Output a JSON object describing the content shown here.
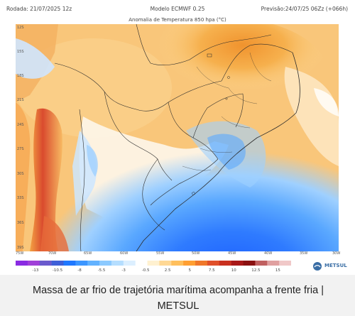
{
  "header": {
    "run": "Rodada: 21/07/2025 12z",
    "model": "Modelo ECMWF 0.25",
    "forecast": "Previsão:24/07/25 06Zz (+066h)",
    "title": "Anomalia de Temperatura 850 hpa (°C)"
  },
  "axes": {
    "lat_labels": [
      "12S",
      "15S",
      "18S",
      "21S",
      "24S",
      "27S",
      "30S",
      "33S",
      "36S",
      "39S"
    ],
    "lon_labels": [
      "75W",
      "70W",
      "65W",
      "60W",
      "55W",
      "50W",
      "45W",
      "40W",
      "35W",
      "30W"
    ]
  },
  "legend": {
    "labels": [
      "-13",
      "-10.5",
      "-8",
      "-5.5",
      "-3",
      "-0.5",
      "2.5",
      "5",
      "7.5",
      "10",
      "12.5",
      "15"
    ],
    "colors": [
      "#8a2be2",
      "#a040d8",
      "#6a5acd",
      "#3f60d8",
      "#1f78ff",
      "#3c96ff",
      "#62b2ff",
      "#8ccaff",
      "#b5deff",
      "#dcefff",
      "#ffffff",
      "#fff1d0",
      "#ffd894",
      "#ffbf5c",
      "#ff9f32",
      "#f0782a",
      "#e0502a",
      "#c9301f",
      "#a81818",
      "#8a1010",
      "#c06060",
      "#e0a0a0",
      "#f0c8c8"
    ]
  },
  "brand": {
    "logo_text": "METSUL",
    "color": "#3a6ea5"
  },
  "caption": {
    "text": "Massa de ar frio de trajetória marítima acompanha a frente fria | METSUL"
  }
}
